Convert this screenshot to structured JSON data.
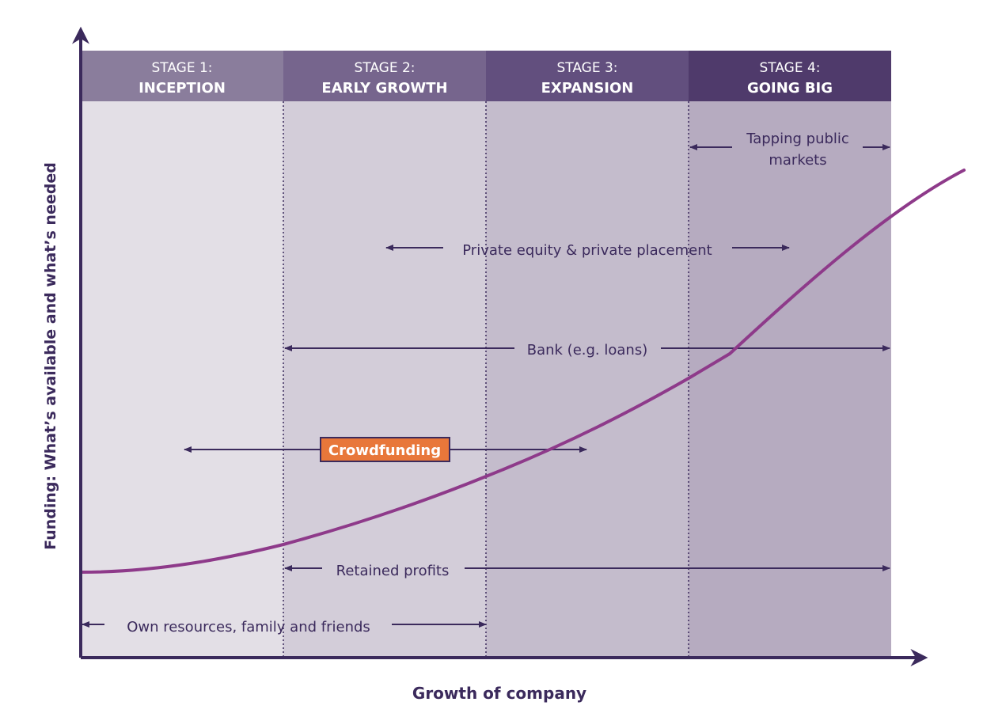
{
  "stages": [
    {
      "number": "STAGE 1:",
      "name": "INCEPTION",
      "color": "#8a7d9c"
    },
    {
      "number": "STAGE 2:",
      "name": "EARLY GROWTH",
      "color": "#76658d"
    },
    {
      "number": "STAGE 3:",
      "name": "EXPANSION",
      "color": "#624f7e"
    },
    {
      "number": "STAGE 4:",
      "name": "GOING BIG",
      "color": "#4f3a6b"
    }
  ],
  "band_colors": [
    "#e3dfe6",
    "#d3cdd9",
    "#c4bccc",
    "#b6abc0"
  ],
  "axes": {
    "y_label": "Funding: What’s available and what’s needed",
    "x_label": "Growth of company",
    "color": "#3b2a5c"
  },
  "funding_sources": {
    "tapping_public_markets": {
      "line1": "Tapping public",
      "line2": "markets"
    },
    "private_equity": "Private equity & private placement",
    "bank": "Bank (e.g. loans)",
    "crowdfunding": "Crowdfunding",
    "retained_profits": "Retained profits",
    "own_resources": "Own resources, family and friends"
  },
  "colors": {
    "curve": "#8e3a8a",
    "arrow": "#3b2a5c",
    "crowdfunding_fill": "#e8773a",
    "crowdfunding_text": "#ffffff",
    "header_text": "#ffffff"
  }
}
